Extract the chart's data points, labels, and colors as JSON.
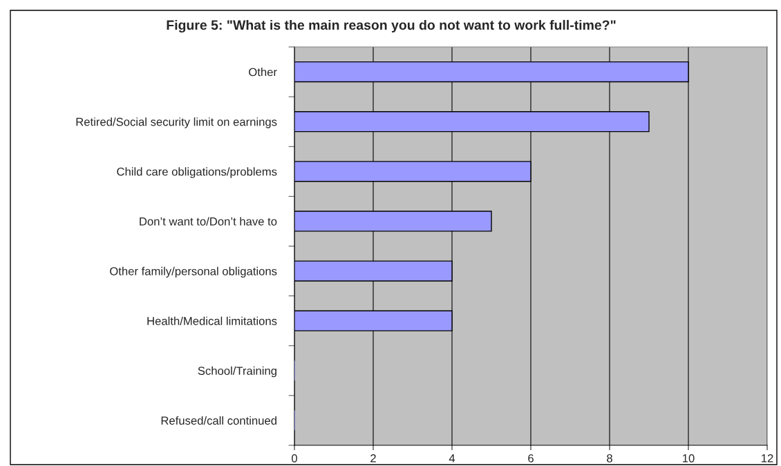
{
  "chart_data": {
    "type": "bar",
    "orientation": "horizontal",
    "title": "Figure 5: \"What is the main reason you do not want to work full-time?\"",
    "categories": [
      "Other",
      "Retired/Social security limit on earnings",
      "Child care obligations/problems",
      "Don’t want to/Don’t have to",
      "Other family/personal obligations",
      "Health/Medical limitations",
      "School/Training",
      "Refused/call continued"
    ],
    "values": [
      10,
      9,
      6,
      5,
      4,
      4,
      0,
      0
    ],
    "color": "#9999ff",
    "xlim": [
      0,
      12
    ],
    "xticks": [
      0,
      2,
      4,
      6,
      8,
      10,
      12
    ],
    "grid": "x"
  }
}
